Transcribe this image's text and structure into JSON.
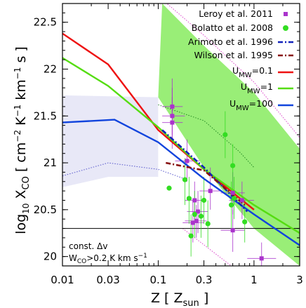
{
  "chart_data": {
    "type": "scatter",
    "x_scale": "log",
    "xlim": [
      0.01,
      3
    ],
    "ylim": [
      19.9,
      22.7
    ],
    "x_ticks": [
      0.01,
      0.03,
      0.1,
      0.3,
      1,
      3
    ],
    "x_tick_labels": [
      "0.01",
      "0.03",
      "0.1",
      "0.3",
      "1",
      "3"
    ],
    "y_ticks": [
      20,
      20.5,
      21,
      21.5,
      22,
      22.5
    ],
    "y_tick_labels": [
      "20",
      "20.5",
      "21",
      "21.5",
      "22",
      "22.5"
    ],
    "xlabel": {
      "main": "Z [ Z",
      "sub": "sun",
      "close": " ]"
    },
    "ylabel": {
      "pre": "log",
      "pre_sub": "10",
      "x": " X",
      "x_sub": "CO",
      "units": " [ cm",
      "s1": "−2",
      "k": " K",
      "s2": "−1",
      "km": " km",
      "s3": "−1",
      "end": " s ]"
    },
    "horizontal_line": 20.3,
    "annotation": {
      "line1": "const. Δv",
      "line2_a": "W",
      "line2_sub": "CO",
      "line2_b": ">0.2 K km s",
      "line2_sup": "−1"
    },
    "bands": [
      {
        "name": "",
        "color": "#99ee77",
        "upper": [
          [
            0.11,
            22.7
          ],
          [
            0.3,
            22.25
          ],
          [
            1,
            21.75
          ],
          [
            3,
            21.15
          ]
        ],
        "lower": [
          [
            0.1,
            21.7
          ],
          [
            0.3,
            20.95
          ],
          [
            1,
            20.3
          ],
          [
            3,
            19.9
          ]
        ]
      },
      {
        "name": "",
        "color": "#e8e8f7",
        "upper": [
          [
            0.01,
            21.72
          ],
          [
            0.1,
            21.7
          ]
        ],
        "lower": [
          [
            0.01,
            20.74
          ],
          [
            0.03,
            20.85
          ],
          [
            0.1,
            20.85
          ]
        ]
      }
    ],
    "dotted_curves": [
      {
        "color": "#dd44cc",
        "points": [
          [
            0.1,
            22.78
          ],
          [
            0.3,
            22.36
          ],
          [
            1,
            21.86
          ],
          [
            3,
            21.27
          ]
        ]
      },
      {
        "color": "#dd44cc",
        "points": [
          [
            0.18,
            20.3
          ],
          [
            0.5,
            19.95
          ],
          [
            1,
            19.72
          ]
        ]
      },
      {
        "color": "#228822",
        "points": [
          [
            0.1,
            21.62
          ],
          [
            0.3,
            21.45
          ],
          [
            0.7,
            21.12
          ],
          [
            1,
            20.95
          ]
        ]
      },
      {
        "color": "#5555cc",
        "points": [
          [
            0.01,
            20.86
          ],
          [
            0.03,
            21.0
          ],
          [
            0.1,
            20.93
          ],
          [
            0.2,
            20.82
          ]
        ]
      }
    ],
    "series": [
      {
        "name": "U_MW=0.1",
        "style": "line",
        "color": "#ee1111",
        "points": [
          [
            0.01,
            22.38
          ],
          [
            0.03,
            22.05
          ],
          [
            0.1,
            21.35
          ],
          [
            0.3,
            20.93
          ],
          [
            1,
            20.5
          ]
        ]
      },
      {
        "name": "U_MW=1",
        "style": "line",
        "color": "#55dd11",
        "points": [
          [
            0.01,
            22.12
          ],
          [
            0.03,
            21.82
          ],
          [
            0.1,
            21.38
          ],
          [
            0.3,
            20.93
          ],
          [
            1,
            20.55
          ],
          [
            3,
            20.25
          ]
        ]
      },
      {
        "name": "U_MW=100",
        "style": "line",
        "color": "#1144dd",
        "points": [
          [
            0.01,
            21.43
          ],
          [
            0.035,
            21.46
          ],
          [
            0.1,
            21.22
          ],
          [
            0.3,
            20.83
          ],
          [
            1,
            20.45
          ],
          [
            3,
            20.12
          ]
        ]
      },
      {
        "name": "Arimoto et al. 1996",
        "style": "dashdot",
        "color": "#1122bb",
        "points": [
          [
            0.11,
            21.35
          ],
          [
            0.3,
            20.95
          ],
          [
            0.85,
            20.48
          ]
        ]
      },
      {
        "name": "Wilson et al. 1995",
        "style": "dashdot",
        "color": "#881111",
        "points": [
          [
            0.12,
            21.0
          ],
          [
            0.3,
            20.92
          ],
          [
            0.8,
            20.55
          ]
        ]
      },
      {
        "name": "Leroy et al. 2011",
        "style": "square",
        "color": "#aa33cc",
        "points": [
          {
            "x": 0.14,
            "y": 21.6,
            "xerr": [
              0.11,
              0.18
            ],
            "yerr": [
              21.3,
              21.9
            ]
          },
          {
            "x": 0.14,
            "y": 21.5,
            "xerr": [
              0.11,
              0.19
            ],
            "yerr": [
              21.2,
              21.8
            ]
          },
          {
            "x": 0.14,
            "y": 21.43,
            "xerr": [
              0.11,
              0.18
            ],
            "yerr": [
              21.15,
              21.7
            ]
          },
          {
            "x": 0.2,
            "y": 21.02,
            "xerr": [
              0.15,
              0.27
            ],
            "yerr": [
              20.8,
              21.25
            ]
          },
          {
            "x": 0.24,
            "y": 20.6,
            "xerr": [
              0.19,
              0.3
            ],
            "yerr": [
              20.4,
              20.8
            ]
          },
          {
            "x": 0.26,
            "y": 20.48,
            "xerr": [
              0.2,
              0.33
            ],
            "yerr": [
              20.25,
              20.7
            ]
          },
          {
            "x": 0.23,
            "y": 20.36,
            "xerr": [
              0.18,
              0.3
            ],
            "yerr": [
              20.15,
              20.6
            ]
          },
          {
            "x": 0.25,
            "y": 20.38,
            "xerr": [
              0.19,
              0.32
            ],
            "yerr": [
              20.2,
              20.55
            ]
          },
          {
            "x": 0.35,
            "y": 20.7,
            "xerr": [
              0.27,
              0.45
            ],
            "yerr": [
              20.5,
              20.95
            ]
          },
          {
            "x": 0.6,
            "y": 20.68,
            "xerr": [
              0.45,
              0.8
            ],
            "yerr": [
              20.45,
              20.9
            ]
          },
          {
            "x": 0.75,
            "y": 20.6,
            "xerr": [
              0.55,
              1.0
            ],
            "yerr": [
              20.4,
              20.8
            ]
          },
          {
            "x": 0.6,
            "y": 20.28,
            "xerr": [
              0.45,
              0.8
            ],
            "yerr": [
              20.05,
              20.5
            ]
          },
          {
            "x": 1.2,
            "y": 19.98,
            "xerr": [
              0.85,
              1.7
            ],
            "yerr": [
              19.8,
              20.15
            ]
          }
        ]
      },
      {
        "name": "Bolatto et al. 2008",
        "style": "circle",
        "color": "#33dd22",
        "points": [
          {
            "x": 0.13,
            "y": 20.73,
            "xerr": null,
            "yerr": null
          },
          {
            "x": 0.19,
            "y": 20.82,
            "xerr": null,
            "yerr": [
              20.55,
              21.05
            ]
          },
          {
            "x": 0.21,
            "y": 20.62,
            "xerr": null,
            "yerr": [
              20.35,
              20.85
            ]
          },
          {
            "x": 0.22,
            "y": 20.22,
            "xerr": null,
            "yerr": [
              20.0,
              20.45
            ]
          },
          {
            "x": 0.24,
            "y": 20.45,
            "xerr": null,
            "yerr": [
              20.2,
              20.7
            ]
          },
          {
            "x": 0.28,
            "y": 20.43,
            "xerr": null,
            "yerr": [
              20.2,
              20.65
            ]
          },
          {
            "x": 0.3,
            "y": 20.6,
            "xerr": null,
            "yerr": [
              20.35,
              20.85
            ]
          },
          {
            "x": 0.33,
            "y": 20.35,
            "xerr": null,
            "yerr": [
              20.1,
              20.6
            ]
          },
          {
            "x": 0.5,
            "y": 21.3,
            "xerr": null,
            "yerr": [
              21.05,
              21.55
            ]
          },
          {
            "x": 0.6,
            "y": 20.97,
            "xerr": null,
            "yerr": [
              20.7,
              21.2
            ]
          },
          {
            "x": 0.58,
            "y": 20.55,
            "xerr": null,
            "yerr": [
              20.3,
              20.8
            ]
          },
          {
            "x": 0.62,
            "y": 20.62,
            "xerr": null,
            "yerr": [
              20.4,
              20.85
            ]
          },
          {
            "x": 0.8,
            "y": 20.37,
            "xerr": null,
            "yerr": [
              20.15,
              20.6
            ]
          }
        ]
      }
    ],
    "legend": {
      "placement": "top-right",
      "entries": [
        {
          "label": "Leroy et al. 2011",
          "marker": "square",
          "color": "#aa33cc"
        },
        {
          "label": "Bolatto et al. 2008",
          "marker": "circle",
          "color": "#33dd22"
        },
        {
          "label": "Arimoto et al. 1996",
          "marker": "dashdot",
          "color": "#1122bb"
        },
        {
          "label": "Wilson et al. 1995",
          "marker": "dashdot",
          "color": "#881111"
        },
        {
          "label_main": "U",
          "label_sub": "MW",
          "label_rest": "=0.1",
          "marker": "line",
          "color": "#ee1111"
        },
        {
          "label_main": "U",
          "label_sub": "MW",
          "label_rest": "=1",
          "marker": "line",
          "color": "#55dd11"
        },
        {
          "label_main": "U",
          "label_sub": "MW",
          "label_rest": "=100",
          "marker": "line",
          "color": "#1144dd"
        }
      ]
    }
  }
}
